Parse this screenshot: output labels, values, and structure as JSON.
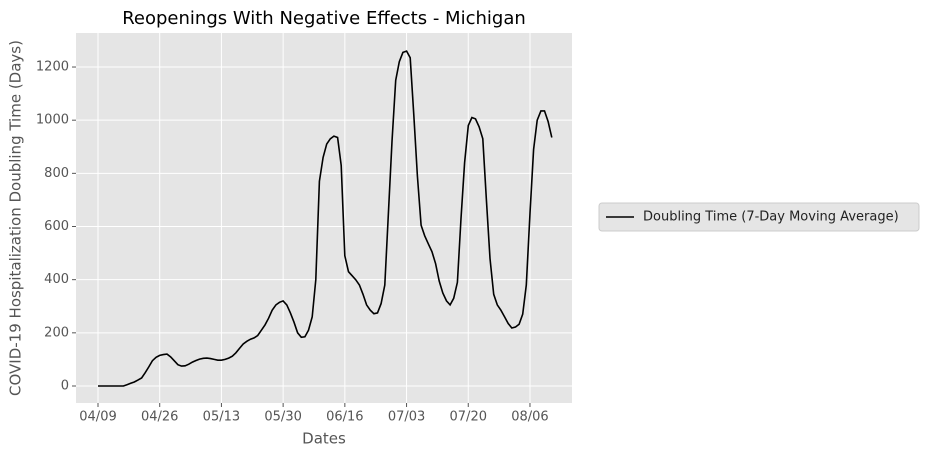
{
  "chart_data": {
    "type": "line",
    "title": "Reopenings With Negative Effects - Michigan",
    "x_label": "Dates",
    "y_label": "COVID-19 Hospitalization Doubling Time (Days)",
    "categories": [
      "04/09",
      null,
      null,
      null,
      null,
      null,
      null,
      null,
      null,
      null,
      null,
      null,
      null,
      null,
      null,
      null,
      null,
      "04/26",
      null,
      null,
      null,
      null,
      null,
      null,
      null,
      null,
      null,
      null,
      null,
      null,
      null,
      null,
      null,
      null,
      "05/13",
      null,
      null,
      null,
      null,
      null,
      null,
      null,
      null,
      null,
      null,
      null,
      null,
      null,
      null,
      null,
      null,
      "05/30",
      null,
      null,
      null,
      null,
      null,
      null,
      null,
      null,
      null,
      null,
      null,
      null,
      null,
      null,
      null,
      null,
      "06/16",
      null,
      null,
      null,
      null,
      null,
      null,
      null,
      null,
      null,
      null,
      null,
      null,
      null,
      null,
      null,
      null,
      "07/03",
      null,
      null,
      null,
      null,
      null,
      null,
      null,
      null,
      null,
      null,
      null,
      null,
      null,
      null,
      null,
      null,
      "07/20",
      null,
      null,
      null,
      null,
      null,
      null,
      null,
      null,
      null,
      null,
      null,
      null,
      null,
      null,
      null,
      null,
      "08/06",
      null,
      null,
      null,
      null,
      null,
      null
    ],
    "series": [
      {
        "name": "Doubling Time (7-Day Moving Average)",
        "color": "#000000",
        "values": [
          0,
          0,
          0,
          0,
          0,
          0,
          0,
          0,
          5,
          10,
          15,
          22,
          30,
          50,
          72,
          95,
          108,
          115,
          118,
          120,
          110,
          95,
          80,
          75,
          76,
          82,
          90,
          96,
          101,
          104,
          105,
          103,
          100,
          97,
          97,
          100,
          105,
          112,
          125,
          142,
          158,
          168,
          176,
          181,
          190,
          210,
          230,
          255,
          285,
          305,
          315,
          320,
          305,
          275,
          240,
          200,
          183,
          185,
          210,
          260,
          400,
          770,
          860,
          910,
          930,
          940,
          935,
          830,
          490,
          430,
          415,
          400,
          380,
          345,
          305,
          285,
          272,
          275,
          310,
          380,
          650,
          920,
          1150,
          1220,
          1255,
          1260,
          1235,
          1020,
          790,
          605,
          565,
          535,
          505,
          460,
          395,
          350,
          320,
          305,
          330,
          390,
          630,
          840,
          980,
          1010,
          1005,
          975,
          930,
          700,
          480,
          345,
          305,
          285,
          260,
          235,
          218,
          222,
          232,
          270,
          380,
          650,
          890,
          1000,
          1035,
          1035,
          995,
          935
        ]
      }
    ],
    "ylim": [
      -64,
      1328
    ],
    "yticks": [
      0,
      200,
      400,
      600,
      800,
      1000,
      1200
    ],
    "grid": true,
    "legend": "right"
  }
}
